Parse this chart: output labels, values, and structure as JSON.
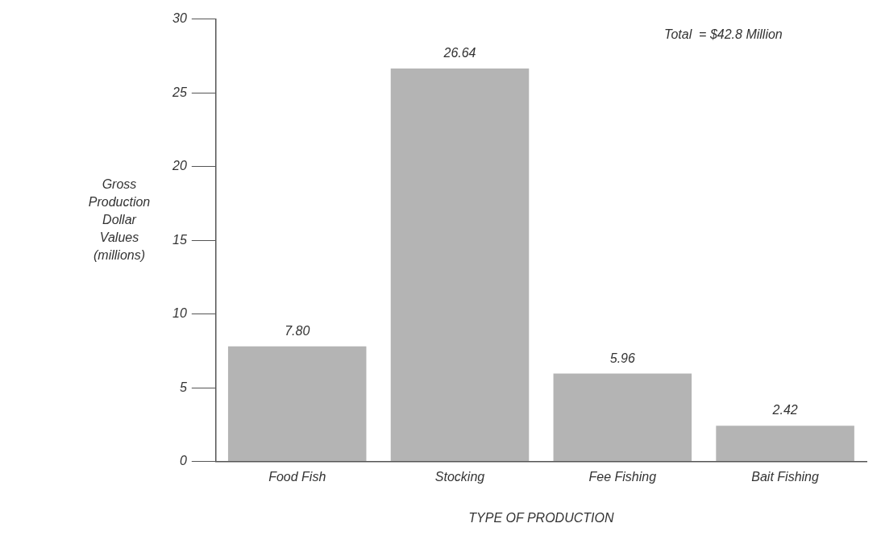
{
  "chart_data": {
    "type": "bar",
    "xlabel": "TYPE OF PRODUCTION",
    "ylabel": "Gross\nProduction\nDollar\nValues\n(millions)",
    "categories": [
      "Food Fish",
      "Stocking",
      "Fee Fishing",
      "Bait Fishing"
    ],
    "values": [
      7.8,
      26.64,
      5.96,
      2.42
    ],
    "value_labels": [
      "7.80",
      "26.64",
      "5.96",
      "2.42"
    ],
    "color": "#b4b4b4",
    "ylim": [
      0,
      30
    ],
    "yticks": [
      0,
      5,
      10,
      15,
      20,
      25,
      30
    ],
    "grid": false,
    "legend": false,
    "annotations": [
      "Total  = $42.8 Million"
    ]
  }
}
